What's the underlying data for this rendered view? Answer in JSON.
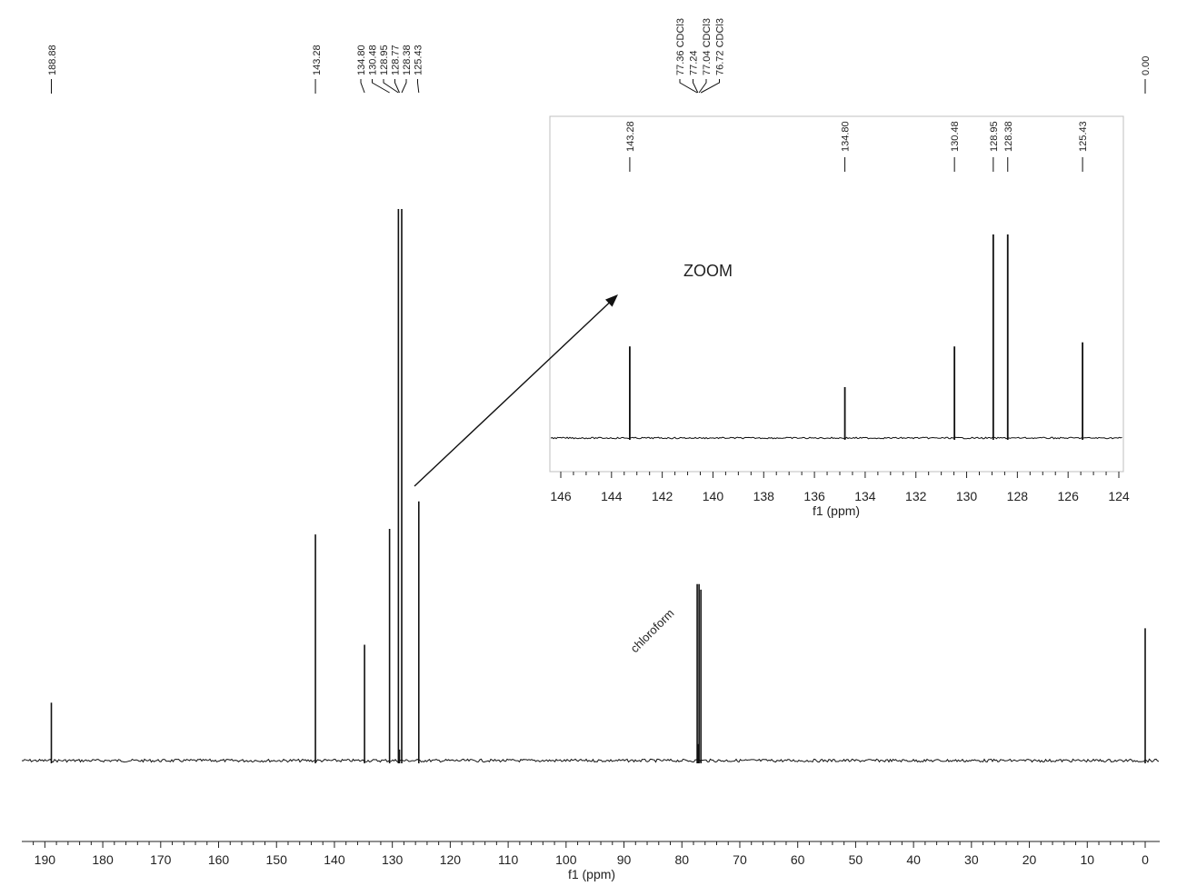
{
  "chart_data": [
    {
      "id": "main",
      "type": "line",
      "xlabel": "f1 (ppm)",
      "xlim": [
        193,
        -2
      ],
      "x_reversed": true,
      "ticks": [
        190,
        180,
        170,
        160,
        150,
        140,
        130,
        120,
        110,
        100,
        90,
        80,
        70,
        60,
        50,
        40,
        30,
        20,
        10,
        0
      ],
      "peaks": [
        {
          "ppm": 188.88,
          "height": 0.105
        },
        {
          "ppm": 143.28,
          "height": 0.41
        },
        {
          "ppm": 134.8,
          "height": 0.21
        },
        {
          "ppm": 130.48,
          "height": 0.42
        },
        {
          "ppm": 128.95,
          "height": 1.0
        },
        {
          "ppm": 128.77,
          "height": 0.02
        },
        {
          "ppm": 128.38,
          "height": 1.0
        },
        {
          "ppm": 125.43,
          "height": 0.47
        },
        {
          "ppm": 77.36,
          "height": 0.32
        },
        {
          "ppm": 77.24,
          "height": 0.03
        },
        {
          "ppm": 77.04,
          "height": 0.32
        },
        {
          "ppm": 76.72,
          "height": 0.31
        },
        {
          "ppm": 0.0,
          "height": 0.24
        }
      ],
      "peak_labels": [
        {
          "group": "g1",
          "text": "188.88",
          "ppm": 188.88
        },
        {
          "group": "g2",
          "text": "143.28",
          "ppm": 143.28
        },
        {
          "group": "g3",
          "text": "134.80",
          "ppm": 134.8
        },
        {
          "group": "g3",
          "text": "130.48",
          "ppm": 130.48
        },
        {
          "group": "g3",
          "text": "128.95",
          "ppm": 128.95
        },
        {
          "group": "g3",
          "text": "128.77",
          "ppm": 128.77
        },
        {
          "group": "g3",
          "text": "128.38",
          "ppm": 128.38
        },
        {
          "group": "g3",
          "text": "125.43",
          "ppm": 125.43
        },
        {
          "group": "g4",
          "text": "77.36 CDCl3",
          "ppm": 77.36
        },
        {
          "group": "g4",
          "text": "77.24",
          "ppm": 77.24
        },
        {
          "group": "g4",
          "text": "77.04 CDCl3",
          "ppm": 77.04
        },
        {
          "group": "g4",
          "text": "76.72 CDCl3",
          "ppm": 76.72
        },
        {
          "group": "g5",
          "text": "0.00",
          "ppm": 0.0
        }
      ],
      "annotations": {
        "solvent_label": "chloroform"
      }
    },
    {
      "id": "inset",
      "type": "line",
      "xlabel": "f1 (ppm)",
      "xlim": [
        146.4,
        123.8
      ],
      "x_reversed": true,
      "ticks": [
        146,
        144,
        142,
        140,
        138,
        136,
        134,
        132,
        130,
        128,
        126,
        124
      ],
      "peaks": [
        {
          "ppm": 143.28,
          "height": 0.45
        },
        {
          "ppm": 134.8,
          "height": 0.25
        },
        {
          "ppm": 130.48,
          "height": 0.45
        },
        {
          "ppm": 128.95,
          "height": 1.0
        },
        {
          "ppm": 128.38,
          "height": 1.0
        },
        {
          "ppm": 125.43,
          "height": 0.47
        }
      ],
      "peak_labels": [
        {
          "text": "143.28",
          "ppm": 143.28
        },
        {
          "text": "134.80",
          "ppm": 134.8
        },
        {
          "text": "130.48",
          "ppm": 130.48
        },
        {
          "text": "128.95",
          "ppm": 128.95
        },
        {
          "text": "128.38",
          "ppm": 128.38
        },
        {
          "text": "125.43",
          "ppm": 125.43
        }
      ],
      "annotations": {
        "zoom_label": "ZOOM"
      }
    }
  ]
}
